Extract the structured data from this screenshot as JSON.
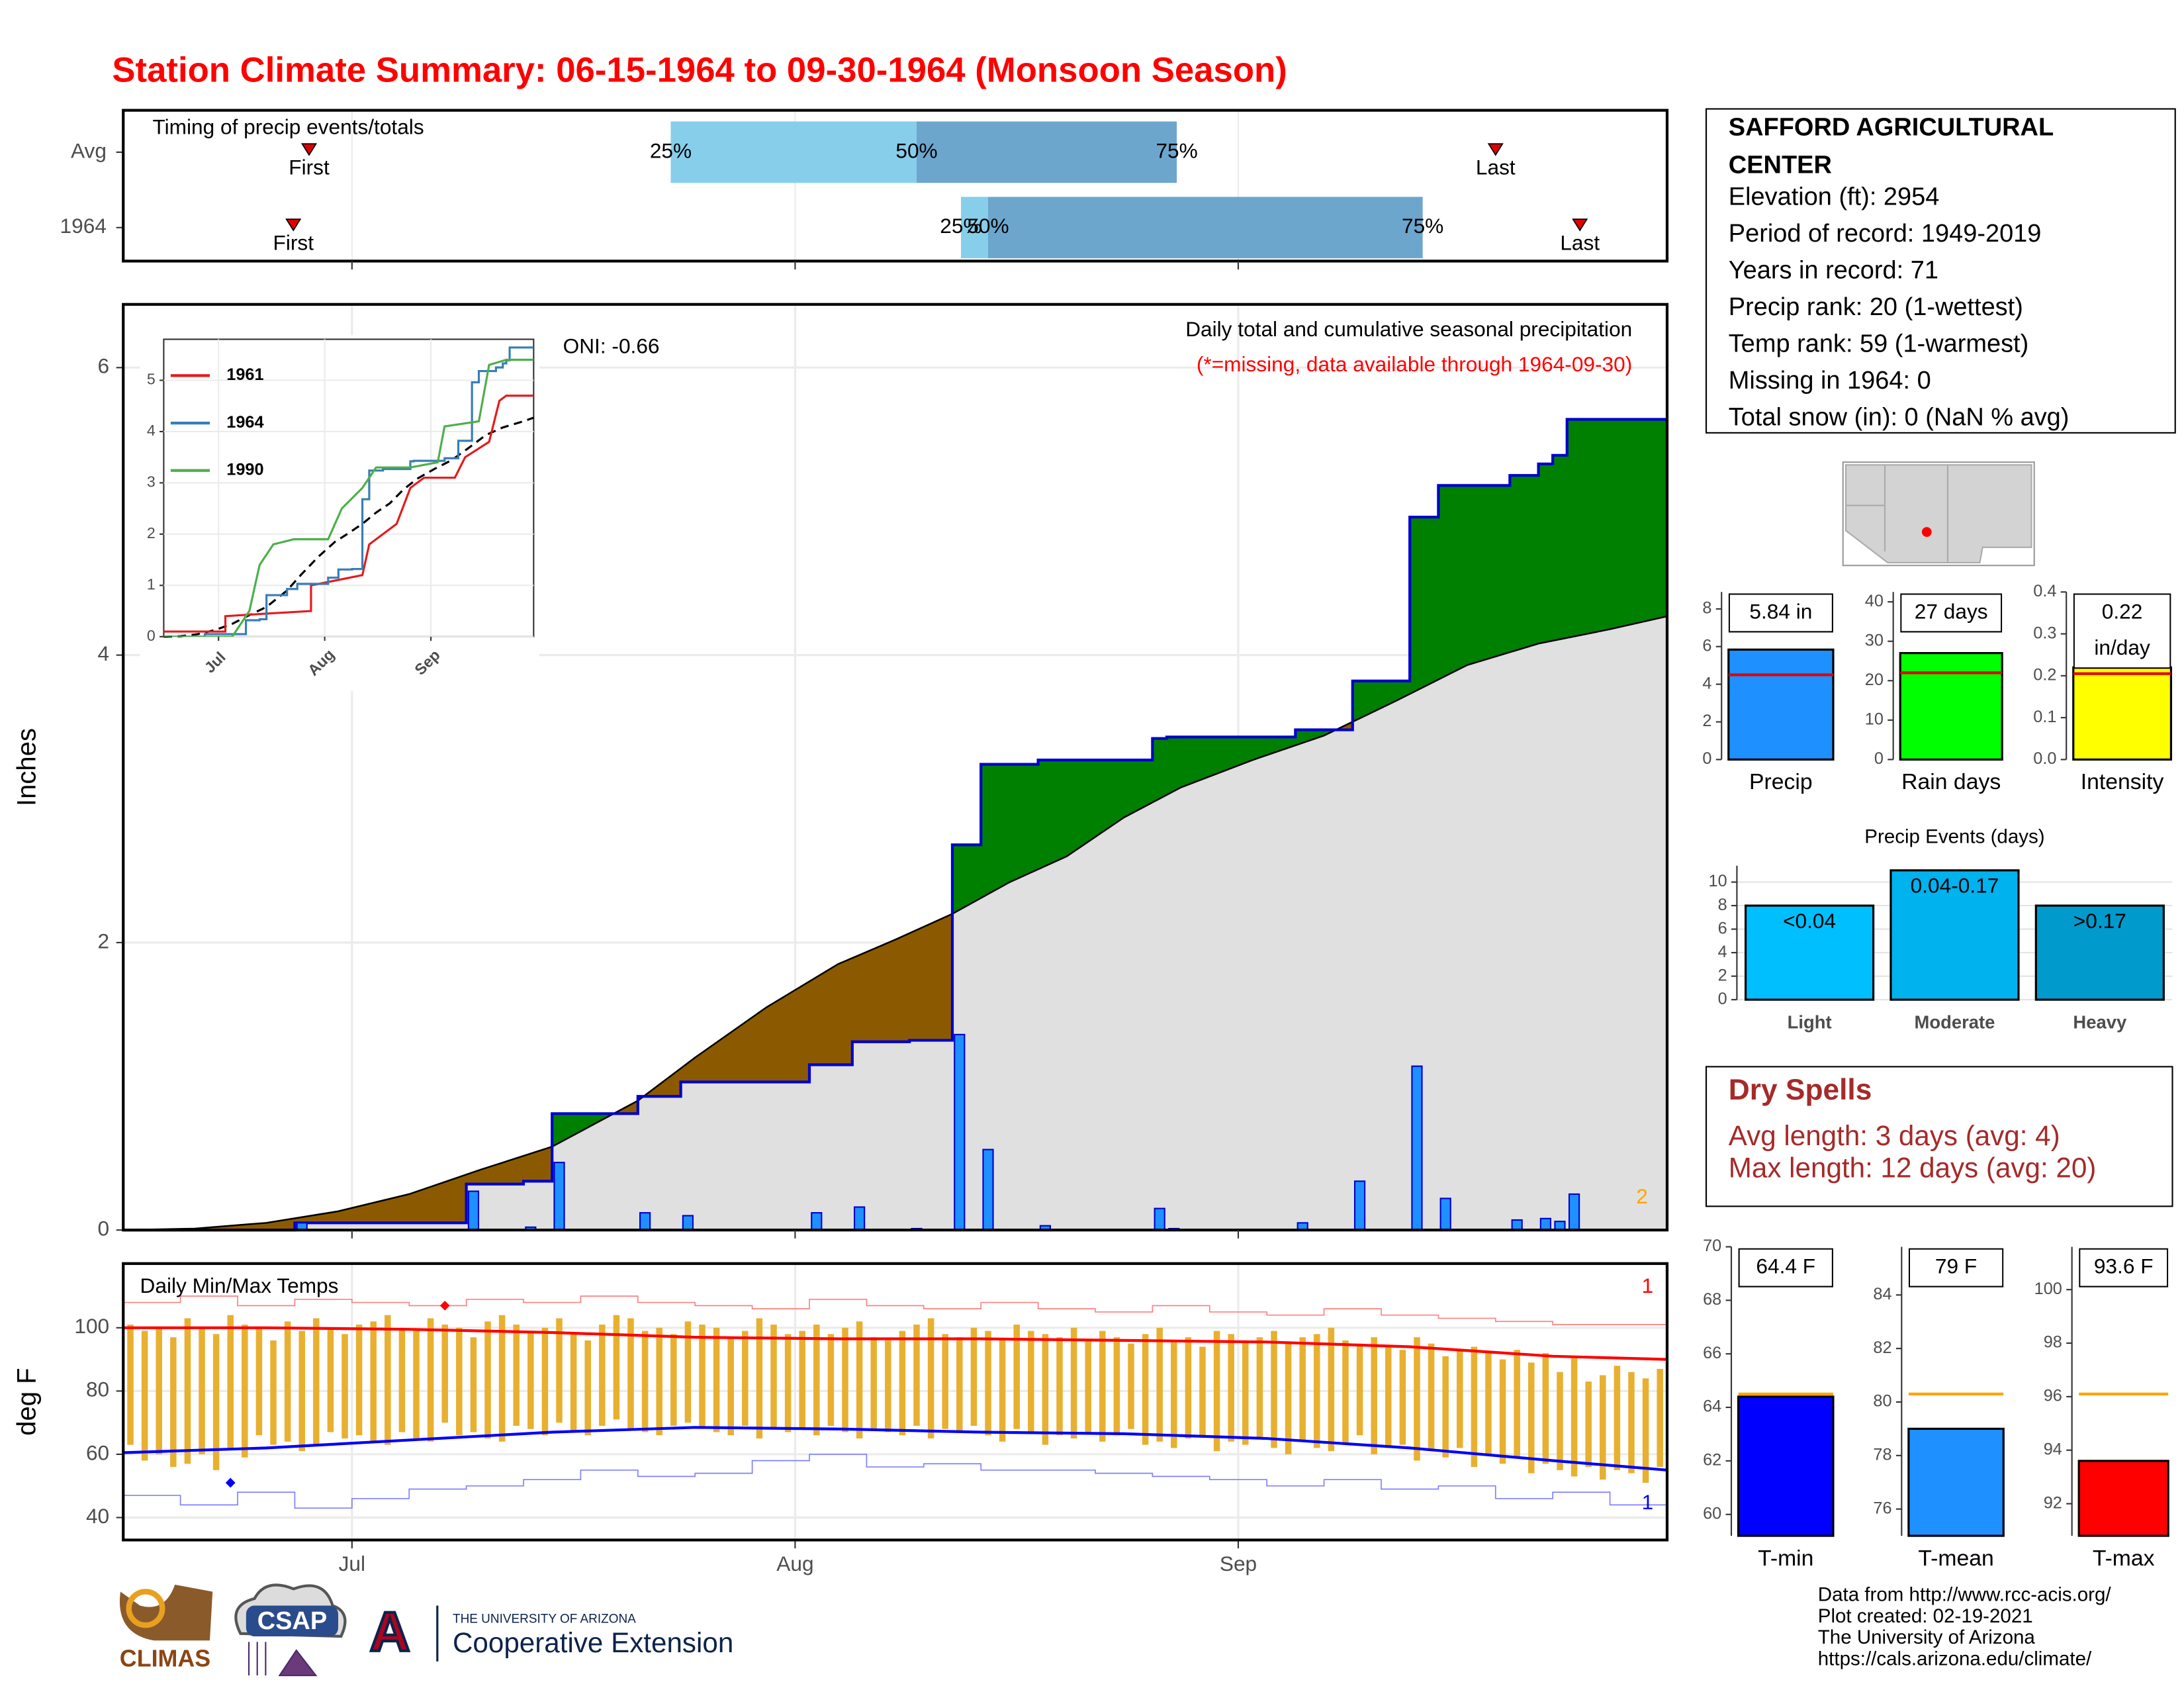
{
  "title": "Station Climate Summary: 06-15-1964 to 09-30-1964 (Monsoon Season)",
  "station": {
    "name": "SAFFORD AGRICULTURAL CENTER",
    "lines": [
      "Elevation (ft): 2954",
      "Period of record: 1949-2019",
      "Years in record: 71",
      "Precip rank: 20 (1-wettest)",
      "Temp rank: 59 (1-warmest)",
      "Missing in 1964: 0",
      "Total snow (in): 0 (NaN % avg)"
    ]
  },
  "dry_spells": {
    "title": "Dry Spells",
    "lines": [
      "Avg length: 3 days (avg: 4)",
      "Max length: 12 days (avg: 20)"
    ]
  },
  "footer": [
    "Data from http://www.rcc-acis.org/",
    "Plot created: 02-19-2021",
    "The University of Arizona",
    "https://cals.arizona.edu/climate/"
  ],
  "logos": {
    "climas": "CLIMAS",
    "csap": "CSAP",
    "university": "THE UNIVERSITY OF ARIZONA",
    "extension": "Cooperative Extension"
  },
  "chart_data": [
    {
      "type": "timing",
      "title": "Timing of precip events/totals",
      "categories": [
        "Avg",
        "1964"
      ],
      "first": [
        13.0,
        11.9
      ],
      "q25": [
        38.3,
        58.6
      ],
      "q50": [
        55.5,
        60.5
      ],
      "q75": [
        73.7,
        90.9
      ],
      "last": [
        96.0,
        101.9
      ],
      "labels": {
        "first": "First",
        "last": "Last",
        "q25": "25%",
        "q50": "50%",
        "q75": "75%"
      },
      "colors": [
        "#87ceeb",
        "#6ca6cd"
      ],
      "marker_color": "#e00000",
      "xlim": [
        0,
        108
      ]
    },
    {
      "type": "cumulative_precip",
      "title": "Daily total and cumulative seasonal precipitation",
      "note": "(*=missing, data available through 1964-09-30)",
      "annotation": "ONI: -0.66",
      "corner_label": 2,
      "ylabel": "Inches",
      "xlim": [
        0,
        108
      ],
      "ylim": [
        0,
        6.44
      ],
      "yticks": [
        0,
        2,
        4,
        6
      ],
      "x": [
        12,
        24,
        28,
        30,
        36,
        39,
        48,
        51,
        55,
        58,
        60,
        64,
        72,
        73,
        82,
        86,
        90,
        92,
        97,
        99,
        100,
        101
      ],
      "values": [
        0.05,
        0.27,
        0.02,
        0.47,
        0.12,
        0.1,
        0.12,
        0.16,
        0.01,
        1.36,
        0.56,
        0.03,
        0.15,
        0.01,
        0.05,
        0.34,
        1.14,
        0.22,
        0.07,
        0.08,
        0.06,
        0.25
      ],
      "normal": {
        "x": [
          0,
          5,
          10,
          15,
          20,
          25,
          30,
          36,
          40,
          45,
          50,
          54,
          58,
          62,
          66,
          70,
          74,
          79,
          84,
          89,
          94,
          99,
          104,
          108
        ],
        "values": [
          0,
          0.01,
          0.05,
          0.13,
          0.25,
          0.42,
          0.58,
          0.9,
          1.2,
          1.55,
          1.85,
          2.02,
          2.2,
          2.42,
          2.6,
          2.87,
          3.08,
          3.27,
          3.44,
          3.68,
          3.93,
          4.08,
          4.18,
          4.27
        ]
      },
      "bar_color": "#1e90ff",
      "line_color": "#0000cd",
      "above_color": "#008000",
      "below_color": "#8b5a00",
      "normal_color": "#e0e0e0"
    },
    {
      "type": "line",
      "xlim": [
        0,
        108
      ],
      "ylim": [
        0,
        5.8
      ],
      "yticks": [
        0,
        1,
        2,
        3,
        4,
        5
      ],
      "xticks": [
        {
          "value": 16,
          "label": "Jul"
        },
        {
          "value": 47,
          "label": "Aug"
        },
        {
          "value": 78,
          "label": "Sep"
        }
      ],
      "series": [
        {
          "name": "1961",
          "color": "#e41a1c",
          "x": [
            0,
            18,
            18,
            30,
            43,
            43,
            58,
            60,
            68,
            72,
            76,
            85,
            88,
            95,
            98,
            100,
            108
          ],
          "values": [
            0.1,
            0.1,
            0.4,
            0.45,
            0.5,
            1.0,
            1.2,
            1.8,
            2.2,
            2.9,
            3.1,
            3.1,
            3.5,
            3.8,
            4.6,
            4.7,
            4.7
          ]
        },
        {
          "name": "1964",
          "color": "#377eb8"
        },
        {
          "name": "1990",
          "color": "#4daf4a",
          "x": [
            0,
            20,
            25,
            28,
            32,
            38,
            48,
            52,
            58,
            62,
            72,
            80,
            82,
            92,
            95,
            100,
            108
          ],
          "values": [
            0,
            0,
            0.5,
            1.4,
            1.8,
            1.9,
            1.9,
            2.5,
            2.9,
            3.3,
            3.3,
            3.4,
            4.1,
            4.2,
            5.3,
            5.4,
            5.4
          ]
        }
      ]
    },
    {
      "type": "temps",
      "title": "Daily Min/Max Temps",
      "ylabel": "deg F",
      "xlim": [
        0,
        108
      ],
      "ylim": [
        32.9,
        120.3
      ],
      "yticks": [
        40,
        60,
        80,
        100
      ],
      "xticks": [
        {
          "value": 16,
          "label": "Jul"
        },
        {
          "value": 47,
          "label": "Aug"
        },
        {
          "value": 78,
          "label": "Sep"
        }
      ],
      "daily_max": [
        101,
        99,
        100,
        97,
        103,
        100,
        98,
        104,
        101,
        100,
        96,
        102,
        99,
        103,
        100,
        98,
        101,
        102,
        104,
        100,
        99,
        103,
        101,
        100,
        97,
        102,
        104,
        101,
        99,
        100,
        103,
        98,
        96,
        101,
        104,
        103,
        99,
        100,
        98,
        102,
        101,
        100,
        97,
        99,
        103,
        101,
        98,
        99,
        101,
        98,
        100,
        102,
        97,
        96,
        99,
        101,
        103,
        98,
        97,
        100,
        99,
        96,
        101,
        99,
        98,
        97,
        100,
        96,
        99,
        97,
        95,
        98,
        100,
        96,
        97,
        94,
        99,
        98,
        96,
        97,
        99,
        95,
        97,
        98,
        100,
        96,
        95,
        97,
        94,
        93,
        97,
        95,
        91,
        93,
        94,
        92,
        90,
        93,
        89,
        92,
        86,
        91,
        83,
        85,
        88,
        86,
        84,
        87
      ],
      "daily_min": [
        63,
        58,
        60,
        56,
        57,
        60,
        55,
        62,
        59,
        66,
        63,
        64,
        61,
        63,
        67,
        65,
        66,
        64,
        63,
        67,
        65,
        64,
        70,
        66,
        67,
        65,
        64,
        69,
        68,
        66,
        70,
        67,
        66,
        69,
        71,
        68,
        67,
        66,
        69,
        70,
        68,
        67,
        66,
        69,
        65,
        68,
        67,
        68,
        66,
        69,
        67,
        65,
        68,
        67,
        66,
        69,
        65,
        68,
        67,
        69,
        66,
        64,
        68,
        67,
        63,
        66,
        65,
        67,
        64,
        66,
        68,
        63,
        64,
        62,
        65,
        66,
        61,
        64,
        63,
        65,
        62,
        60,
        64,
        62,
        61,
        63,
        66,
        60,
        62,
        63,
        58,
        61,
        59,
        62,
        56,
        60,
        57,
        59,
        54,
        57,
        55,
        53,
        56,
        52,
        55,
        54,
        51,
        56
      ],
      "normal_max": {
        "x": [
          0,
          10,
          20,
          30,
          40,
          50,
          60,
          70,
          80,
          90,
          100,
          108
        ],
        "values": [
          100,
          100,
          99.5,
          98.5,
          97,
          96.5,
          96.5,
          96,
          95.5,
          94,
          91,
          90
        ]
      },
      "normal_min": {
        "x": [
          0,
          10,
          20,
          30,
          40,
          50,
          60,
          70,
          80,
          90,
          100,
          108
        ],
        "values": [
          60.5,
          62,
          64.5,
          67,
          68.5,
          68,
          67,
          66.5,
          65,
          62,
          58,
          55
        ]
      },
      "record_high": {
        "x": [
          0,
          4,
          8,
          12,
          16,
          20,
          24,
          28,
          32,
          36,
          40,
          44,
          48,
          52,
          56,
          60,
          64,
          68,
          72,
          76,
          80,
          84,
          88,
          92,
          96,
          100,
          104,
          108
        ],
        "values": [
          108,
          110,
          107,
          109,
          108,
          107,
          109,
          108,
          110,
          108,
          107,
          106,
          109,
          107,
          106,
          108,
          106,
          105,
          107,
          105,
          104,
          106,
          104,
          103,
          102,
          101,
          101,
          102
        ]
      },
      "record_low": {
        "x": [
          0,
          4,
          8,
          12,
          16,
          20,
          24,
          28,
          32,
          36,
          40,
          44,
          48,
          52,
          56,
          60,
          64,
          68,
          72,
          76,
          80,
          84,
          88,
          92,
          96,
          100,
          104,
          108
        ],
        "values": [
          47,
          44,
          48,
          43,
          46,
          49,
          50,
          52,
          55,
          53,
          54,
          58,
          60,
          56,
          57,
          55,
          55,
          54,
          53,
          52,
          50,
          52,
          49,
          50,
          46,
          48,
          44,
          40
        ]
      },
      "record_high_day": {
        "x": 22,
        "value": 107
      },
      "record_low_day": {
        "x": 7,
        "value": 51
      },
      "record_high_count": 1,
      "record_low_count": 1,
      "bar_color": "#e8b030",
      "max_color": "#ff0000",
      "min_color": "#0000ff",
      "record_high_color": "#ff8080",
      "record_low_color": "#8080ff"
    },
    {
      "type": "bar",
      "categories": [
        "Precip"
      ],
      "values": [
        5.84
      ],
      "value_labels": [
        "5.84 in"
      ],
      "average": 4.5,
      "color": "#1e90ff",
      "avg_color": "#e00000",
      "ylim": [
        0,
        8.9
      ],
      "yticks": [
        0,
        2,
        4,
        6,
        8
      ]
    },
    {
      "type": "bar",
      "categories": [
        "Rain days"
      ],
      "values": [
        27
      ],
      "value_labels": [
        "27 days"
      ],
      "average": 22,
      "color": "#00ff00",
      "avg_color": "#e00000",
      "ylim": [
        0,
        42.5
      ],
      "yticks": [
        0,
        10,
        20,
        30,
        40
      ]
    },
    {
      "type": "bar",
      "categories": [
        "Intensity"
      ],
      "values": [
        0.22
      ],
      "value_labels": [
        "0.22 in/day"
      ],
      "average": 0.205,
      "color": "#ffff00",
      "avg_color": "#e00000",
      "ylim": [
        0,
        0.4
      ],
      "yticks": [
        {
          "value": 0,
          "label": "0.0"
        },
        0.1,
        0.2,
        0.3,
        0.4
      ]
    },
    {
      "type": "bar",
      "title": "Precip Events (days)",
      "categories": [
        "Light",
        "Moderate",
        "Heavy"
      ],
      "values": [
        8,
        11,
        8
      ],
      "value_labels": [
        "<0.04",
        "0.04-0.17",
        ">0.17"
      ],
      "colors": [
        "#00bfff",
        "#00b2ee",
        "#009acd"
      ],
      "ylim": [
        0,
        11.4
      ],
      "yticks": [
        0,
        2,
        4,
        6,
        8,
        10
      ],
      "grid": true
    },
    {
      "type": "bar",
      "categories": [
        "T-min"
      ],
      "values": [
        64.4
      ],
      "value_labels": [
        "64.4 F"
      ],
      "average": 64.5,
      "color": "#0000ff",
      "avg_color": "#ffa500",
      "ylim": [
        59.2,
        70
      ],
      "yticks": [
        60,
        62,
        64,
        66,
        68,
        70
      ]
    },
    {
      "type": "bar",
      "categories": [
        "T-mean"
      ],
      "values": [
        79
      ],
      "value_labels": [
        "79 F"
      ],
      "average": 80.3,
      "color": "#1e90ff",
      "avg_color": "#ffa500",
      "ylim": [
        75,
        85.8
      ],
      "yticks": [
        76,
        78,
        80,
        82,
        84
      ]
    },
    {
      "type": "bar",
      "categories": [
        "T-max"
      ],
      "values": [
        93.6
      ],
      "value_labels": [
        "93.6 F"
      ],
      "average": 96.1,
      "color": "#ff0000",
      "avg_color": "#ffa500",
      "ylim": [
        90.8,
        101.6
      ],
      "yticks": [
        92,
        94,
        96,
        98,
        100
      ]
    }
  ]
}
